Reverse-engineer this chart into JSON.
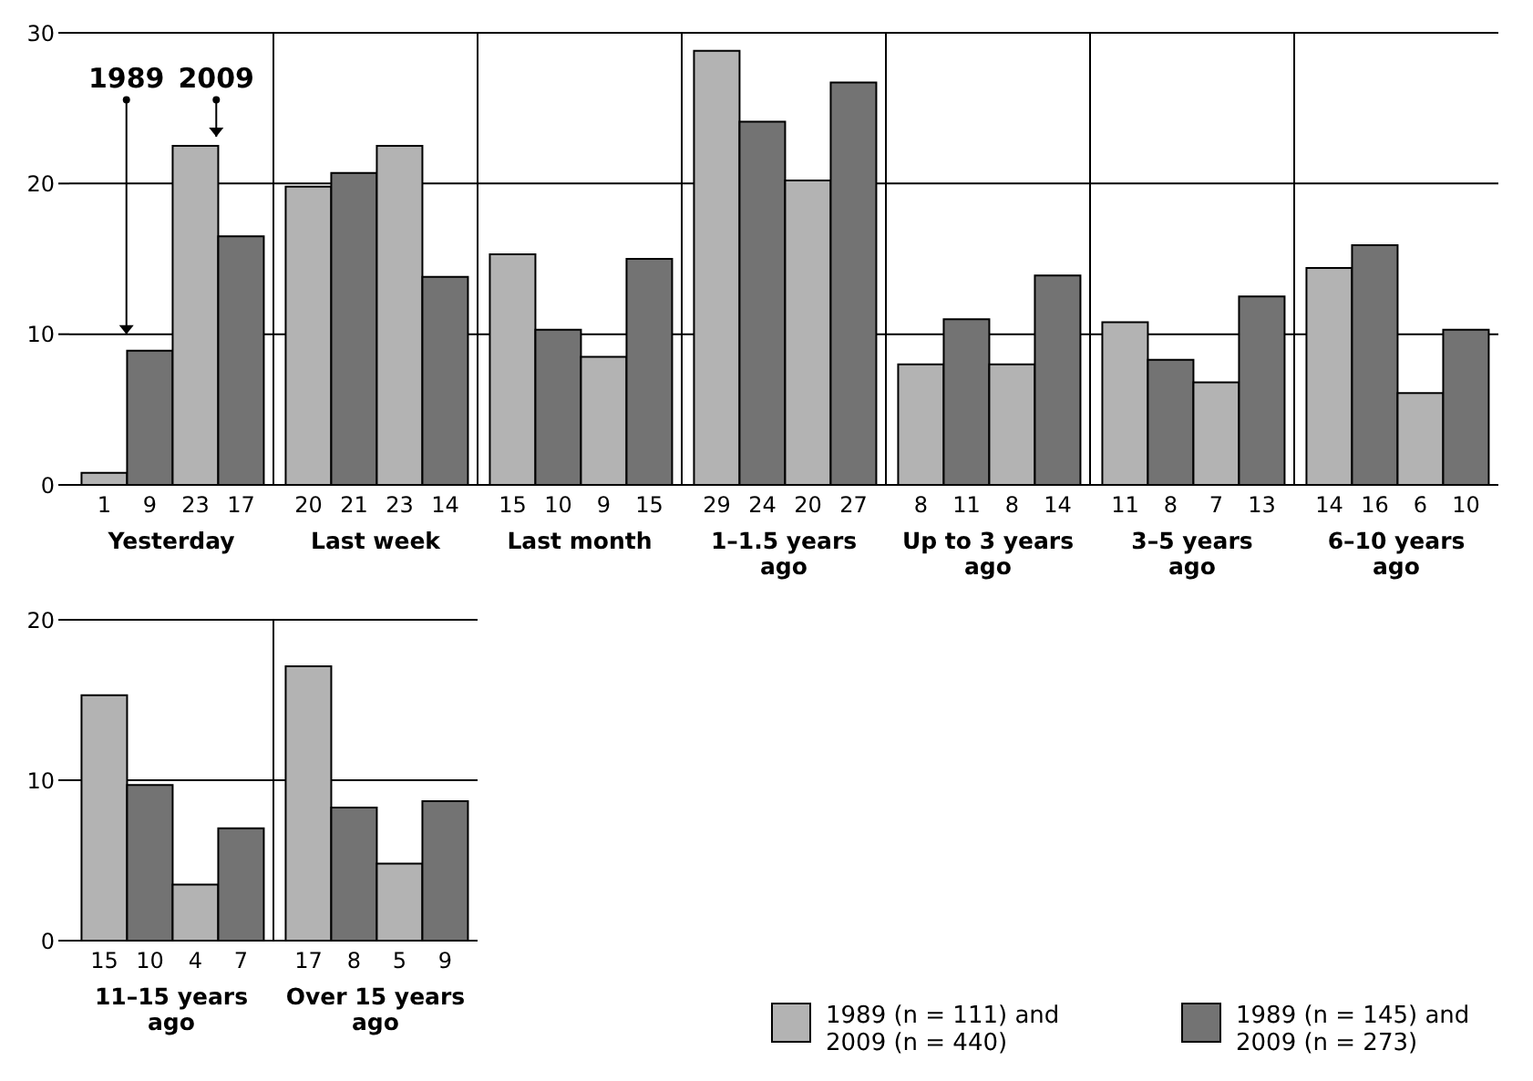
{
  "chart_data": [
    {
      "type": "bar",
      "categories": [
        "Yesterday",
        "Last week",
        "Last month",
        "1–1.5 years ago",
        "Up to 3 years ago",
        "3–5 years ago",
        "6–10 years ago"
      ],
      "series": [
        {
          "color": "#b3b3b3",
          "values": [
            0.8,
            19.8,
            15.3,
            28.8,
            8.0,
            10.8,
            14.4
          ],
          "value_labels": [
            "1",
            "20",
            "15",
            "29",
            "8",
            "11",
            "14"
          ]
        },
        {
          "color": "#737373",
          "values": [
            8.9,
            20.7,
            10.3,
            24.1,
            11.0,
            8.3,
            15.9
          ],
          "value_labels": [
            "9",
            "21",
            "10",
            "24",
            "11",
            "8",
            "16"
          ]
        },
        {
          "color": "#b3b3b3",
          "values": [
            22.5,
            22.5,
            8.5,
            20.2,
            8.0,
            6.8,
            6.1
          ],
          "value_labels": [
            "23",
            "23",
            "9",
            "20",
            "8",
            "7",
            "6"
          ]
        },
        {
          "color": "#737373",
          "values": [
            16.5,
            13.8,
            15.0,
            26.7,
            13.9,
            12.5,
            10.3
          ],
          "value_labels": [
            "17",
            "14",
            "15",
            "27",
            "14",
            "13",
            "10"
          ]
        }
      ],
      "annotations": [
        "1989",
        "2009"
      ],
      "ylim": [
        0,
        30
      ],
      "yticks": [
        0,
        10,
        20,
        30
      ],
      "grid": true,
      "legend": false
    },
    {
      "type": "bar",
      "categories": [
        "11–15 years ago",
        "Over 15 years ago"
      ],
      "series": [
        {
          "name": "1989 (n = 111) and 2009 (n = 440)",
          "color": "#b3b3b3",
          "values": [
            15.3,
            17.1
          ],
          "value_labels": [
            "15",
            "17"
          ]
        },
        {
          "name": "1989 (n = 145) and 2009 (n = 273)",
          "color": "#737373",
          "values": [
            9.7,
            8.3
          ],
          "value_labels": [
            "10",
            "8"
          ]
        },
        {
          "color": "#b3b3b3",
          "values": [
            3.5,
            4.8
          ],
          "value_labels": [
            "4",
            "5"
          ]
        },
        {
          "color": "#737373",
          "values": [
            7.0,
            8.7
          ],
          "value_labels": [
            "7",
            "9"
          ]
        }
      ],
      "ylim": [
        0,
        20
      ],
      "yticks": [
        0,
        10,
        20
      ],
      "grid": true,
      "legend": "bottom right"
    }
  ]
}
